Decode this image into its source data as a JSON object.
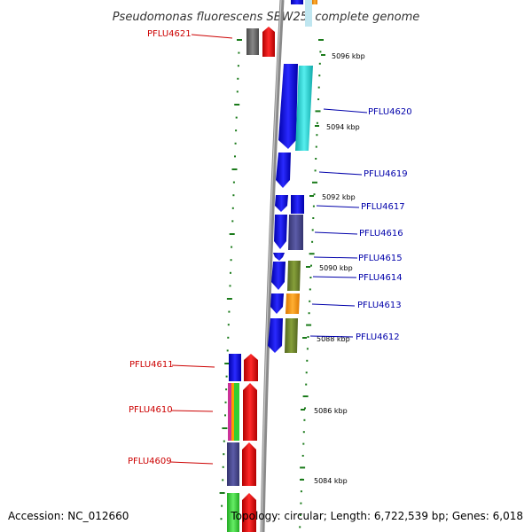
{
  "title": "Pseudomonas fluorescens SBW25, complete genome",
  "footer": {
    "accession": "Accession: NC_012660",
    "summary": "Topology: circular; Length: 6,722,539 bp; Genes: 6,018"
  },
  "ruler_labels": [
    "5096 kbp",
    "5094 kbp",
    "5092 kbp",
    "5090 kbp",
    "5088 kbp",
    "5086 kbp",
    "5084 kbp"
  ],
  "genes_forward": [
    {
      "label": "PFLU4621",
      "color": "#cc0000"
    },
    {
      "label": "PFLU4611",
      "color": "#cc0000"
    },
    {
      "label": "PFLU4610",
      "color": "#cc0000"
    },
    {
      "label": "PFLU4609",
      "color": "#cc0000"
    }
  ],
  "genes_reverse": [
    {
      "label": "PFLU4620",
      "color": "#0000aa"
    },
    {
      "label": "PFLU4619",
      "color": "#0000aa"
    },
    {
      "label": "PFLU4617",
      "color": "#0000aa"
    },
    {
      "label": "PFLU4616",
      "color": "#0000aa"
    },
    {
      "label": "PFLU4615",
      "color": "#0000aa"
    },
    {
      "label": "PFLU4614",
      "color": "#0000aa"
    },
    {
      "label": "PFLU4613",
      "color": "#0000aa"
    },
    {
      "label": "PFLU4612",
      "color": "#0000aa"
    }
  ],
  "colors": {
    "backbone": "#8a8a8a",
    "tick": "#1a7a1a",
    "forward_label": "#cc0000",
    "reverse_label": "#0000aa",
    "blue": "#0000ee",
    "red": "#ee0000",
    "cyan": "#22cccc",
    "grey": "#6b6b6b",
    "slate": "#4a4a8a",
    "olive": "#6b7f2a",
    "orange": "#ff9900",
    "green": "#33cc33",
    "magenta": "#cc3399"
  }
}
